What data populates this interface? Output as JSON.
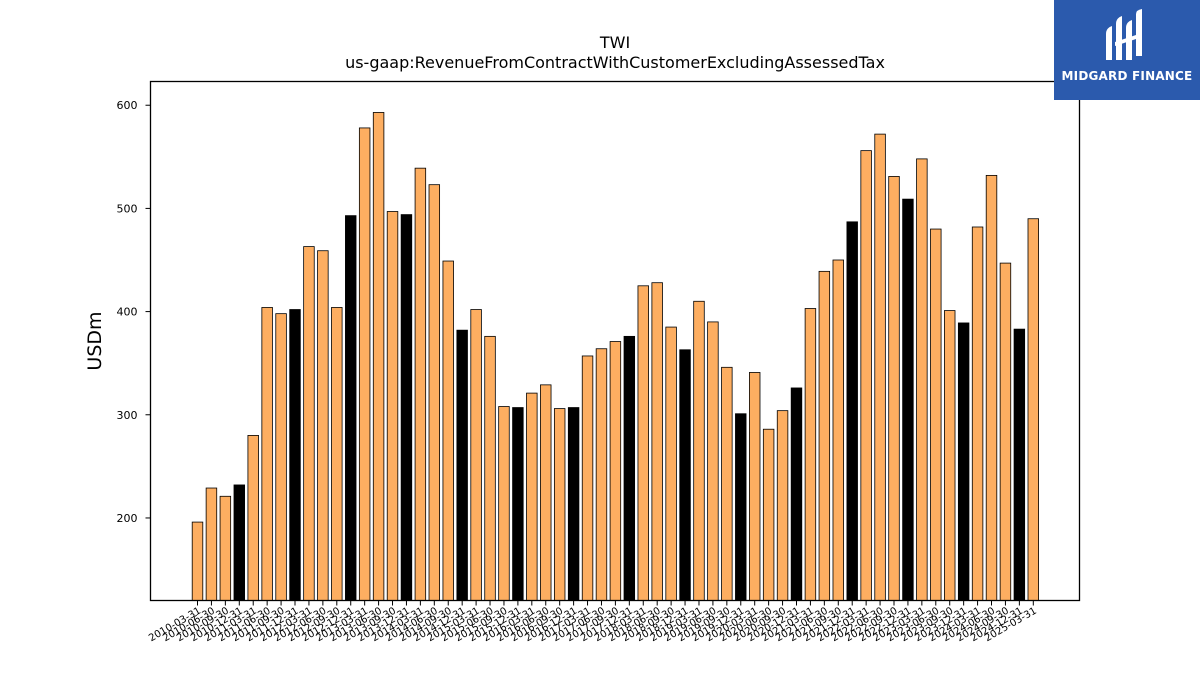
{
  "logo": {
    "text": "MIDGARD FINANCE",
    "background_color": "#2b5aad",
    "icon": "midgard-logo-icon"
  },
  "chart_data": {
    "type": "bar",
    "title": "TWI",
    "subtitle": "us-gaap:RevenueFromContractWithCustomerExcludingAssessedTax",
    "xlabel": "",
    "ylabel": "USDm",
    "ylim": [
      120,
      623
    ],
    "yticks": [
      200,
      300,
      400,
      500,
      600
    ],
    "grid": false,
    "colors": {
      "quarter": "#fdae61",
      "annual": "#000000",
      "edge": "#000000"
    },
    "categories": [
      "2010-03-31",
      "2010-06-30",
      "2010-09-30",
      "2010-12-31",
      "2011-03-31",
      "2011-06-30",
      "2011-09-30",
      "2011-12-31",
      "2012-03-31",
      "2012-06-30",
      "2012-09-30",
      "2012-12-31",
      "2013-03-31",
      "2013-06-30",
      "2013-09-30",
      "2013-12-31",
      "2014-03-31",
      "2014-06-30",
      "2014-09-30",
      "2014-12-31",
      "2015-03-31",
      "2015-06-30",
      "2015-09-30",
      "2015-12-31",
      "2016-03-31",
      "2016-06-30",
      "2016-09-30",
      "2016-12-31",
      "2017-03-31",
      "2017-06-30",
      "2017-09-30",
      "2017-12-31",
      "2018-03-31",
      "2018-06-30",
      "2018-09-30",
      "2018-12-31",
      "2019-03-31",
      "2019-06-30",
      "2019-09-30",
      "2019-12-31",
      "2020-03-31",
      "2020-06-30",
      "2020-09-30",
      "2020-12-31",
      "2021-03-31",
      "2021-06-30",
      "2021-09-30",
      "2021-12-31",
      "2022-03-31",
      "2022-06-30",
      "2022-09-30",
      "2022-12-31",
      "2023-03-31",
      "2023-06-30",
      "2023-09-30",
      "2023-12-31",
      "2024-03-31",
      "2024-06-30",
      "2024-09-30",
      "2024-12-31",
      "2025-03-31"
    ],
    "values": [
      196,
      229,
      221,
      232,
      280,
      404,
      398,
      402,
      463,
      459,
      404,
      493,
      578,
      593,
      497,
      494,
      539,
      523,
      449,
      382,
      402,
      376,
      308,
      307,
      321,
      329,
      306,
      307,
      357,
      364,
      371,
      376,
      425,
      428,
      385,
      363,
      410,
      390,
      346,
      301,
      341,
      286,
      304,
      326,
      403,
      439,
      450,
      487,
      556,
      572,
      531,
      509,
      548,
      480,
      401,
      389,
      482,
      532,
      447,
      383,
      490
    ],
    "annual_flags": [
      0,
      0,
      0,
      1,
      0,
      0,
      0,
      1,
      0,
      0,
      0,
      1,
      0,
      0,
      0,
      1,
      0,
      0,
      0,
      1,
      0,
      0,
      0,
      1,
      0,
      0,
      0,
      1,
      0,
      0,
      0,
      1,
      0,
      0,
      0,
      1,
      0,
      0,
      0,
      1,
      0,
      0,
      0,
      1,
      0,
      0,
      0,
      1,
      0,
      0,
      0,
      1,
      0,
      0,
      0,
      1,
      0,
      0,
      0,
      1,
      0
    ]
  }
}
